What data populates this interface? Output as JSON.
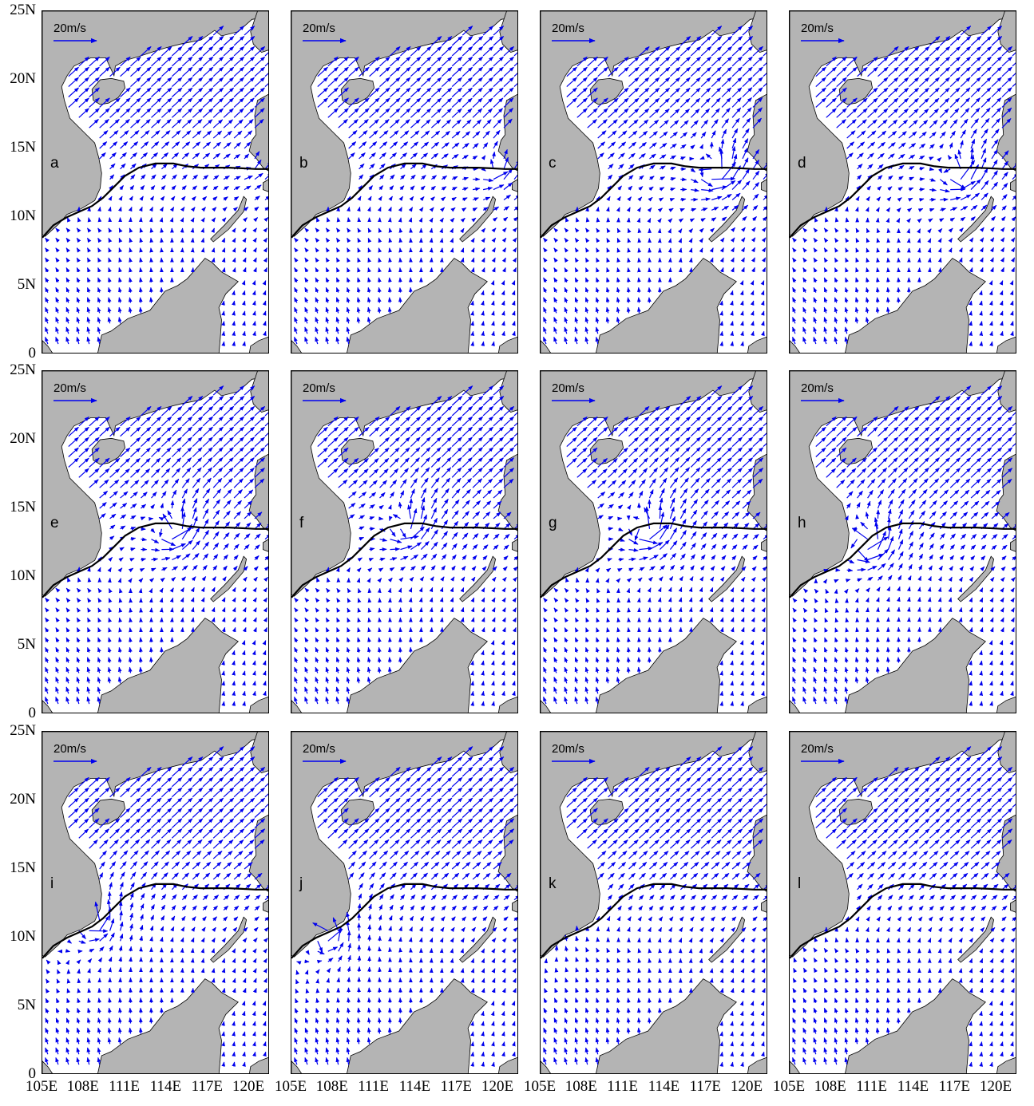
{
  "axes": {
    "y_ticks": [
      "25N",
      "20N",
      "15N",
      "10N",
      "5N",
      "0"
    ],
    "x_ticks": [
      "105E",
      "108E",
      "111E",
      "114E",
      "117E",
      "120E"
    ]
  },
  "scale_label": "20m/s",
  "colors": {
    "land": "#b4b4b4",
    "vector": "#0000ee",
    "track": "#000000"
  },
  "panels": [
    {
      "label": "a",
      "center": [
        120.0,
        13.5
      ],
      "strength": 0.2
    },
    {
      "label": "b",
      "center": [
        119.5,
        13.2
      ],
      "strength": 0.5
    },
    {
      "label": "c",
      "center": [
        117.5,
        13.2
      ],
      "strength": 1.0
    },
    {
      "label": "d",
      "center": [
        117.0,
        13.0
      ],
      "strength": 0.9
    },
    {
      "label": "e",
      "center": [
        114.2,
        13.2
      ],
      "strength": 0.9
    },
    {
      "label": "f",
      "center": [
        113.0,
        13.5
      ],
      "strength": 0.9
    },
    {
      "label": "g",
      "center": [
        112.5,
        13.3
      ],
      "strength": 1.0
    },
    {
      "label": "h",
      "center": [
        110.5,
        12.3
      ],
      "strength": 1.1
    },
    {
      "label": "i",
      "center": [
        108.5,
        11.0
      ],
      "strength": 1.0
    },
    {
      "label": "j",
      "center": [
        107.5,
        10.0
      ],
      "strength": 0.9
    },
    {
      "label": "k",
      "center": [
        105.5,
        9.6
      ],
      "strength": 0.3
    },
    {
      "label": "l",
      "center": [
        105.0,
        9.0
      ],
      "strength": 0.1
    }
  ]
}
